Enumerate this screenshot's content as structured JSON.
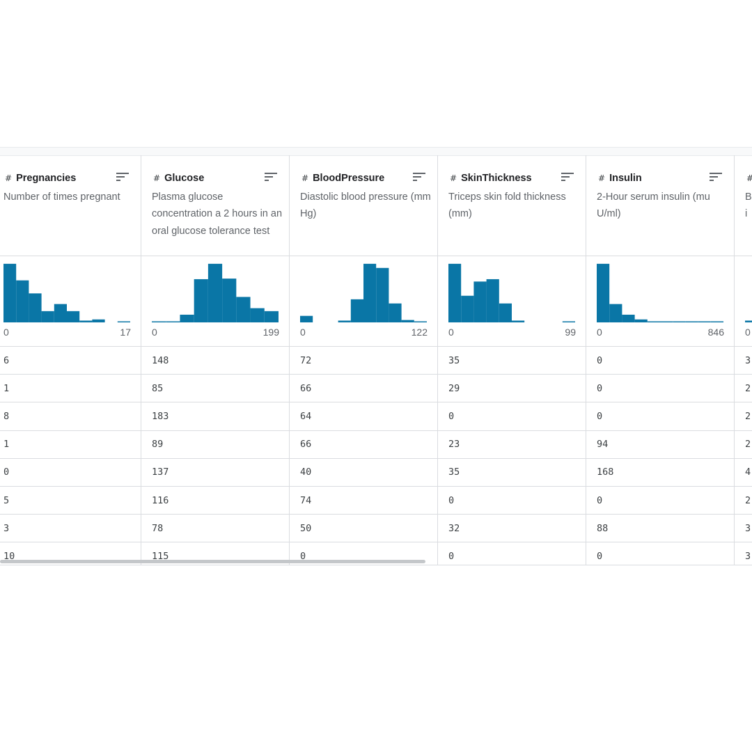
{
  "colors": {
    "accent": "#0a76a6",
    "border": "#dadce0",
    "muted_text": "#5f6368"
  },
  "columns": [
    {
      "type_icon": "#",
      "name": "Pregnancies",
      "description": "Number of times pregnant",
      "range_min": "0",
      "range_max": "17",
      "histogram_fractions": [
        0.99,
        0.71,
        0.49,
        0.19,
        0.31,
        0.19,
        0.03,
        0.05,
        0.0,
        0.01
      ],
      "values": [
        "6",
        "1",
        "8",
        "1",
        "0",
        "5",
        "3",
        "10"
      ]
    },
    {
      "type_icon": "#",
      "name": "Glucose",
      "description": "Plasma glucose concentration a 2 hours in an oral glucose tolerance test",
      "range_min": "0",
      "range_max": "199",
      "histogram_fractions": [
        0.01,
        0.01,
        0.13,
        0.73,
        0.99,
        0.74,
        0.43,
        0.24,
        0.19
      ],
      "values": [
        "148",
        "85",
        "183",
        "89",
        "137",
        "116",
        "78",
        "115"
      ]
    },
    {
      "type_icon": "#",
      "name": "BloodPressure",
      "description": "Diastolic blood pressure (mm Hg)",
      "range_min": "0",
      "range_max": "122",
      "histogram_fractions": [
        0.11,
        0.0,
        0.0,
        0.03,
        0.39,
        0.99,
        0.92,
        0.32,
        0.04,
        0.01
      ],
      "values": [
        "72",
        "66",
        "64",
        "66",
        "40",
        "74",
        "50",
        "0"
      ]
    },
    {
      "type_icon": "#",
      "name": "SkinThickness",
      "description": "Triceps skin fold thickness (mm)",
      "range_min": "0",
      "range_max": "99",
      "histogram_fractions": [
        0.99,
        0.45,
        0.69,
        0.73,
        0.32,
        0.03,
        0.0,
        0.0,
        0.0,
        0.005
      ],
      "values": [
        "35",
        "29",
        "0",
        "23",
        "35",
        "0",
        "32",
        "0"
      ]
    },
    {
      "type_icon": "#",
      "name": "Insulin",
      "description": "2-Hour serum insulin (mu U/ml)",
      "range_min": "0",
      "range_max": "846",
      "histogram_fractions": [
        0.99,
        0.31,
        0.13,
        0.05,
        0.01,
        0.01,
        0.005,
        0.003,
        0.002,
        0.002
      ],
      "values": [
        "0",
        "0",
        "0",
        "94",
        "168",
        "0",
        "88",
        "0"
      ]
    },
    {
      "type_icon": "#",
      "name": "",
      "description": "B i",
      "range_min": "0",
      "range_max": "",
      "histogram_fractions": [
        0.03
      ],
      "values": [
        "3",
        "2",
        "2",
        "2",
        "4",
        "2",
        "3",
        "3"
      ]
    }
  ]
}
